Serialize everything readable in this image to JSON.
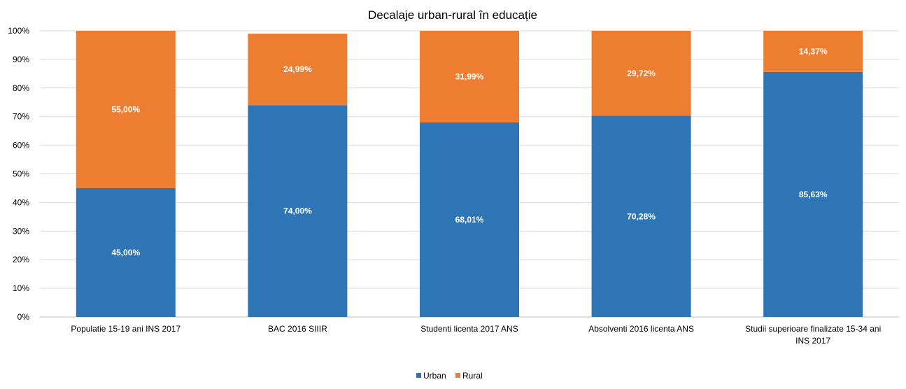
{
  "chart_data": {
    "type": "bar",
    "stacked": true,
    "title": "Decalaje urban-rural în educație",
    "categories": [
      [
        "Populatie 15-19 ani INS  2017"
      ],
      [
        "BAC 2016 SIIIR"
      ],
      [
        "Studenti licenta 2017 ANS"
      ],
      [
        "Absolventi 2016 licenta ANS"
      ],
      [
        "Studii superioare finalizate  15-34 ani",
        "INS  2017"
      ]
    ],
    "series": [
      {
        "name": "Urban",
        "color": "#2e75b6",
        "values": [
          45.0,
          74.0,
          68.01,
          70.28,
          85.63
        ],
        "labels": [
          "45,00%",
          "74,00%",
          "68,01%",
          "70,28%",
          "85,63%"
        ]
      },
      {
        "name": "Rural",
        "color": "#ed7d31",
        "values": [
          55.0,
          24.99,
          31.99,
          29.72,
          14.37
        ],
        "labels": [
          "55,00%",
          "24,99%",
          "31,99%",
          "29,72%",
          "14,37%"
        ]
      }
    ],
    "yticks": [
      "0%",
      "10%",
      "20%",
      "30%",
      "40%",
      "50%",
      "60%",
      "70%",
      "80%",
      "90%",
      "100%"
    ],
    "ylim": [
      0,
      100
    ],
    "grid": true,
    "legend_position": "bottom-center"
  }
}
